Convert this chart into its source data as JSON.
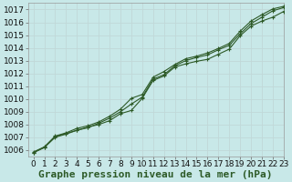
{
  "title": "Graphe pression niveau de la mer (hPa)",
  "bg_color": "#c8e8e8",
  "grid_color": "#c0d8d8",
  "line_color": "#2d5a27",
  "marker_color": "#2d5a27",
  "xlim": [
    -0.5,
    23
  ],
  "ylim": [
    1005.5,
    1017.5
  ],
  "yticks": [
    1006,
    1007,
    1008,
    1009,
    1010,
    1011,
    1012,
    1013,
    1014,
    1015,
    1016,
    1017
  ],
  "xticks": [
    0,
    1,
    2,
    3,
    4,
    5,
    6,
    7,
    8,
    9,
    10,
    11,
    12,
    13,
    14,
    15,
    16,
    17,
    18,
    19,
    20,
    21,
    22,
    23
  ],
  "series": [
    [
      1005.8,
      1006.2,
      1007.05,
      1007.3,
      1007.55,
      1007.8,
      1008.0,
      1008.3,
      1008.85,
      1009.1,
      1010.05,
      1011.45,
      1011.8,
      1012.5,
      1012.75,
      1012.95,
      1013.1,
      1013.5,
      1013.9,
      1014.95,
      1015.7,
      1016.1,
      1016.4,
      1016.85
    ],
    [
      1005.85,
      1006.25,
      1007.1,
      1007.35,
      1007.7,
      1007.9,
      1008.2,
      1008.65,
      1009.2,
      1010.05,
      1010.35,
      1011.7,
      1012.15,
      1012.7,
      1013.15,
      1013.35,
      1013.6,
      1013.95,
      1014.35,
      1015.3,
      1016.1,
      1016.6,
      1017.05,
      1017.25
    ],
    [
      1005.8,
      1006.2,
      1007.0,
      1007.25,
      1007.55,
      1007.75,
      1008.1,
      1008.5,
      1009.0,
      1009.6,
      1010.15,
      1011.55,
      1011.9,
      1012.6,
      1013.0,
      1013.25,
      1013.45,
      1013.85,
      1014.2,
      1015.1,
      1015.9,
      1016.4,
      1016.9,
      1017.15
    ]
  ],
  "title_fontsize": 8,
  "tick_fontsize": 6.5,
  "title_color": "#2d5a27",
  "title_fontweight": "bold"
}
